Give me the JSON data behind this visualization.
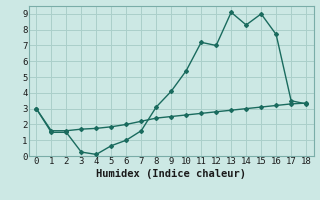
{
  "xlabel": "Humidex (Indice chaleur)",
  "background_color": "#cce8e4",
  "grid_color": "#aacfca",
  "line_color": "#1a6b5e",
  "xlim": [
    -0.5,
    18.5
  ],
  "ylim": [
    0,
    9.5
  ],
  "xticks": [
    0,
    1,
    2,
    3,
    4,
    5,
    6,
    7,
    8,
    9,
    10,
    11,
    12,
    13,
    14,
    15,
    16,
    17,
    18
  ],
  "yticks": [
    0,
    1,
    2,
    3,
    4,
    5,
    6,
    7,
    8,
    9
  ],
  "curve1_x": [
    0,
    1,
    2,
    3,
    4,
    5,
    6,
    7,
    8,
    9,
    10,
    11,
    12,
    13,
    14,
    15,
    16,
    17,
    18
  ],
  "curve1_y": [
    3.0,
    1.5,
    1.5,
    0.25,
    0.1,
    0.65,
    1.0,
    1.6,
    3.1,
    4.1,
    5.4,
    7.2,
    7.0,
    9.1,
    8.3,
    9.0,
    7.7,
    3.5,
    3.3
  ],
  "curve2_x": [
    0,
    1,
    2,
    3,
    4,
    5,
    6,
    7,
    8,
    9,
    10,
    11,
    12,
    13,
    14,
    15,
    16,
    17,
    18
  ],
  "curve2_y": [
    3.0,
    1.6,
    1.6,
    1.7,
    1.75,
    1.85,
    2.0,
    2.2,
    2.4,
    2.5,
    2.6,
    2.7,
    2.8,
    2.9,
    3.0,
    3.1,
    3.2,
    3.3,
    3.35
  ],
  "tick_fontsize": 6.5,
  "xlabel_fontsize": 7.5
}
